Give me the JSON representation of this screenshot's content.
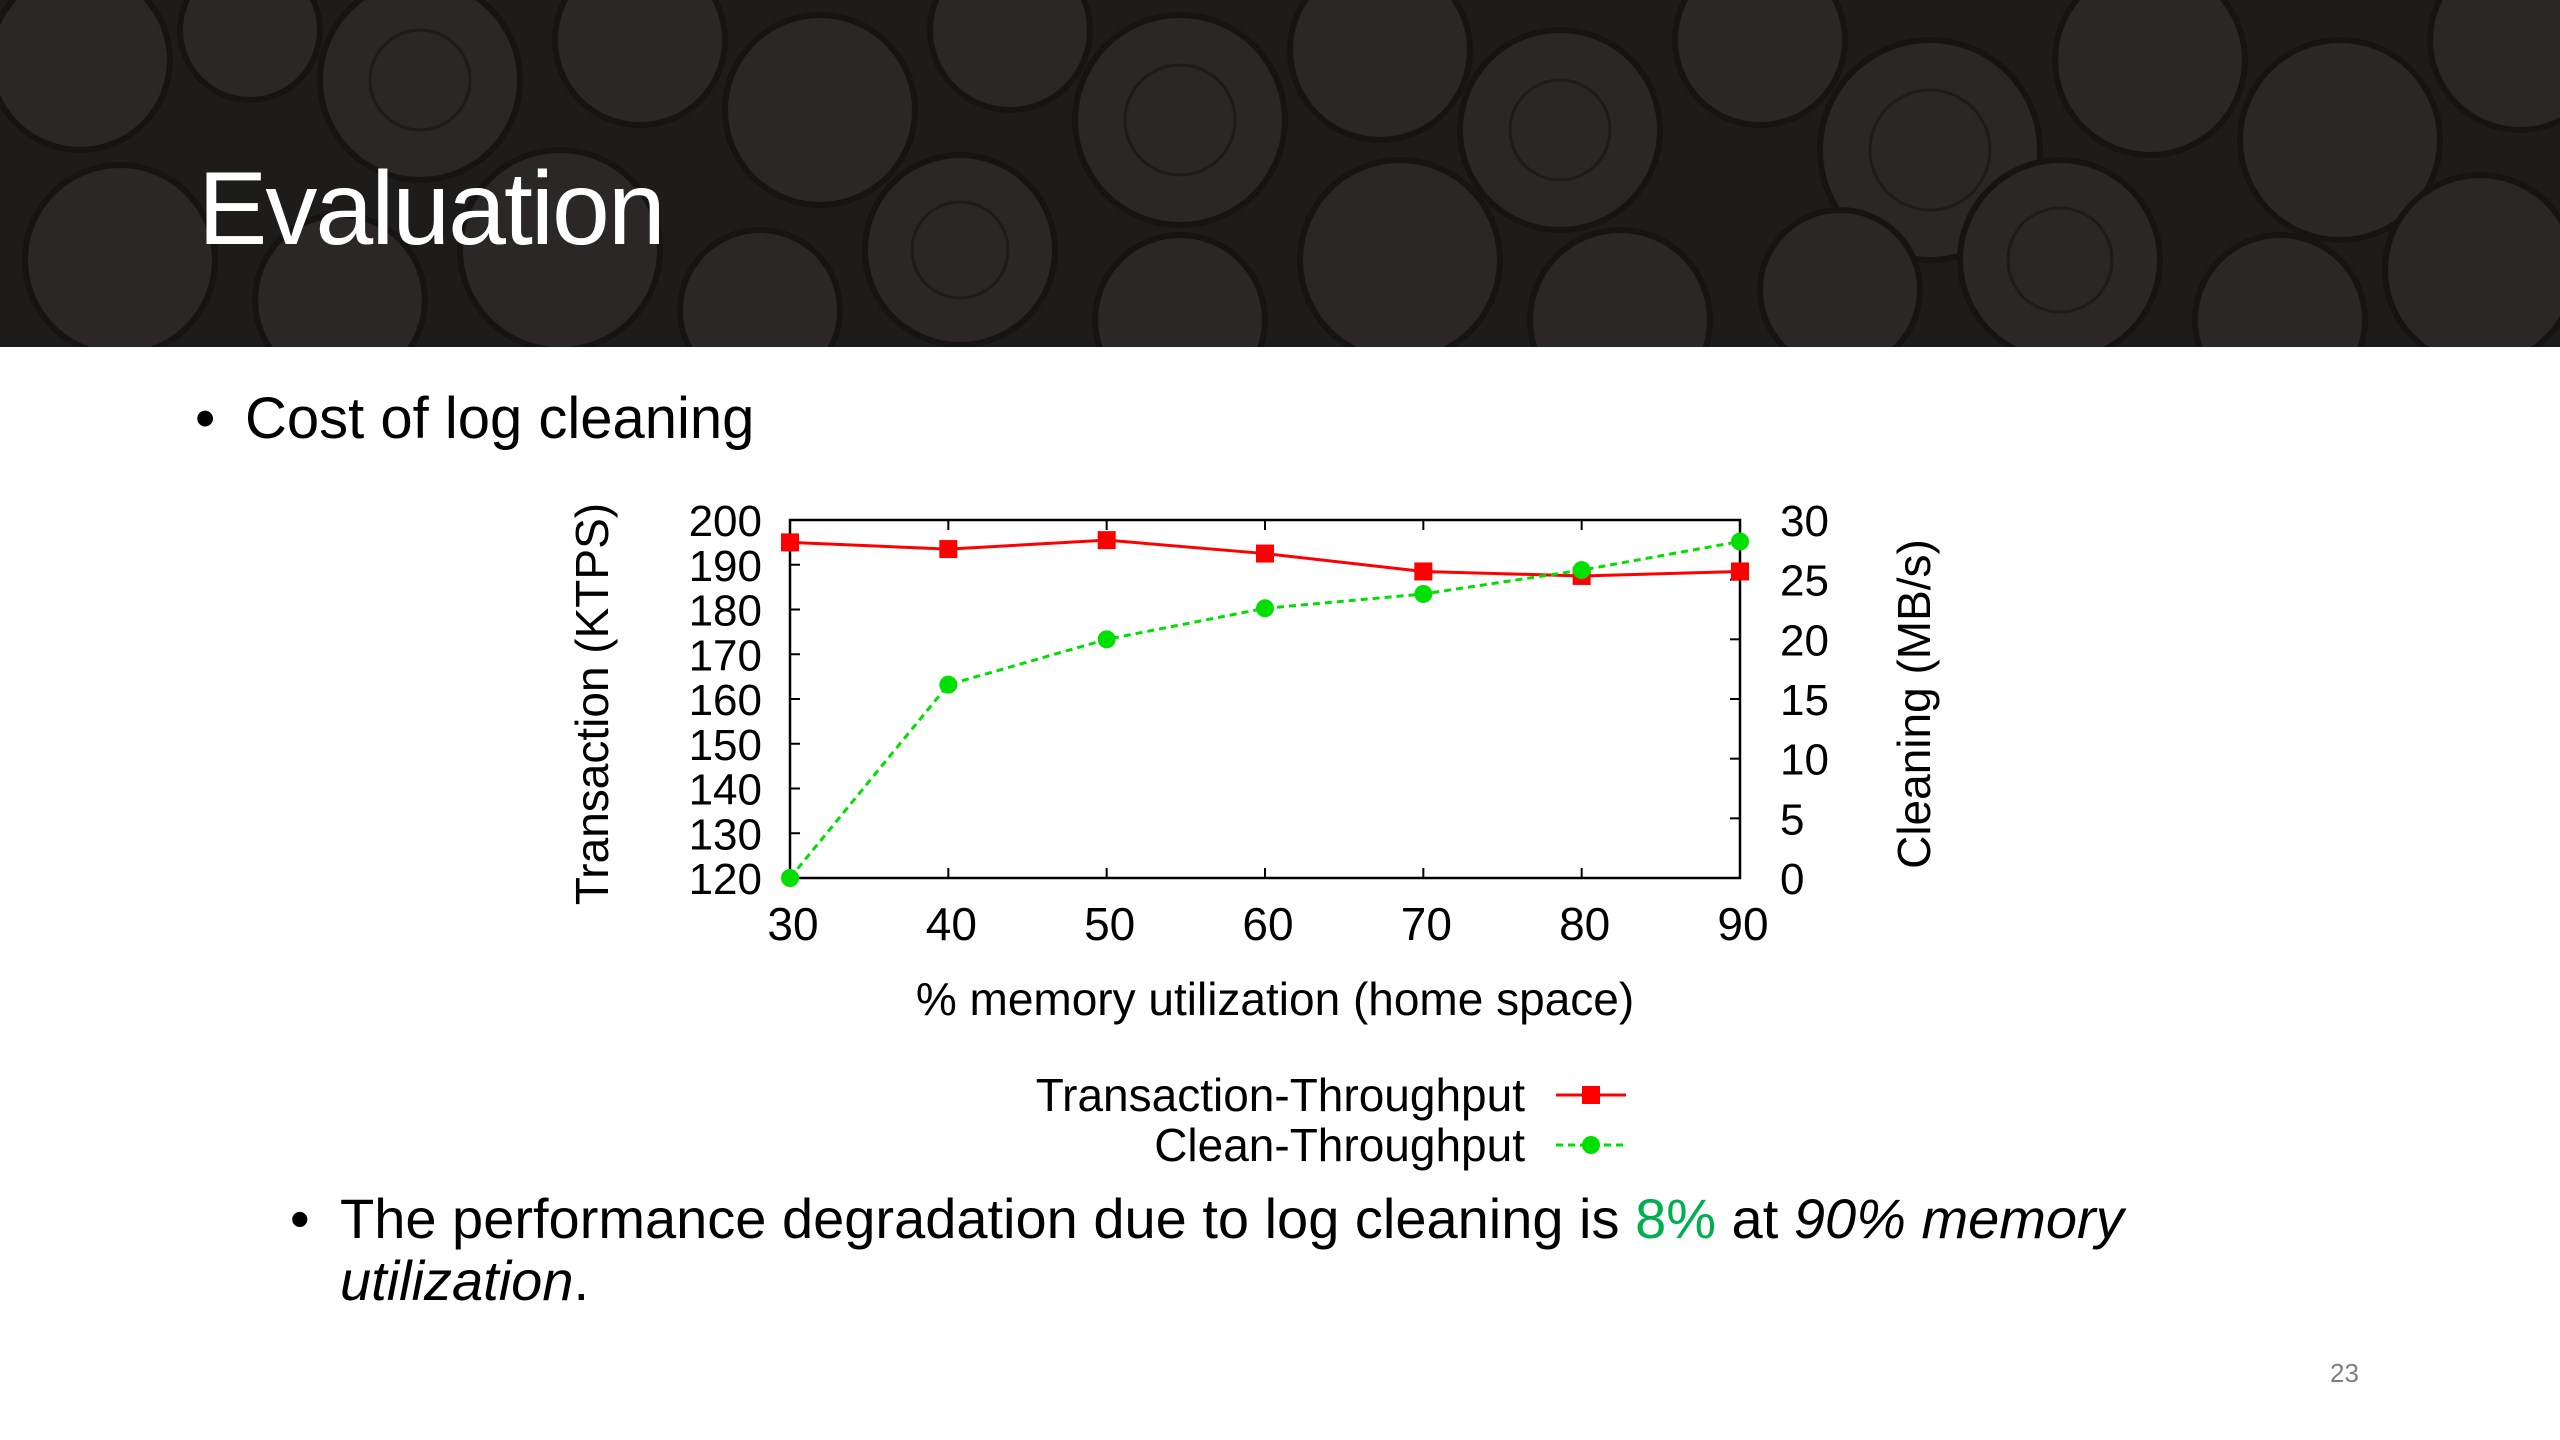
{
  "slide": {
    "title": "Evaluation",
    "bullet_1": "Cost of log cleaning",
    "bullet_2": {
      "part1": "The performance degradation due to log cleaning is ",
      "highlight": "8%",
      "part2": " at ",
      "italic": "90% memory utilization",
      "part3": "."
    },
    "page_number": "23",
    "bullet_symbol": "•"
  },
  "colors": {
    "header_bg": "#1e1c1b",
    "highlight": "#00b050",
    "transaction_series": "#ff0000",
    "clean_series": "#00e000"
  },
  "chart_data": {
    "type": "line",
    "title": "",
    "xlabel": "% memory utilization (home space)",
    "ylabel": "Transaction (KTPS)",
    "y2label": "Cleaning (MB/s)",
    "x": [
      30,
      40,
      50,
      60,
      70,
      80,
      90
    ],
    "xlim": [
      30,
      90
    ],
    "ylim": [
      120,
      200
    ],
    "y2lim": [
      0,
      30
    ],
    "x_ticks": [
      "30",
      "40",
      "50",
      "60",
      "70",
      "80",
      "90"
    ],
    "y_ticks": [
      "200",
      "190",
      "180",
      "170",
      "160",
      "150",
      "140",
      "130",
      "120"
    ],
    "y2_ticks": [
      "30",
      "25",
      "20",
      "15",
      "10",
      "5",
      "0"
    ],
    "legend_position": "bottom",
    "grid": false,
    "series": [
      {
        "name": "Transaction-Throughput",
        "axis": "left",
        "marker": "square",
        "line": "solid",
        "values": [
          195,
          193.5,
          195.5,
          192.5,
          188.5,
          187.5,
          188.5
        ]
      },
      {
        "name": "Clean-Throughput",
        "axis": "right",
        "marker": "circle",
        "line": "dashed",
        "values": [
          0,
          16.2,
          20,
          22.6,
          23.8,
          25.8,
          28.2
        ]
      }
    ]
  }
}
